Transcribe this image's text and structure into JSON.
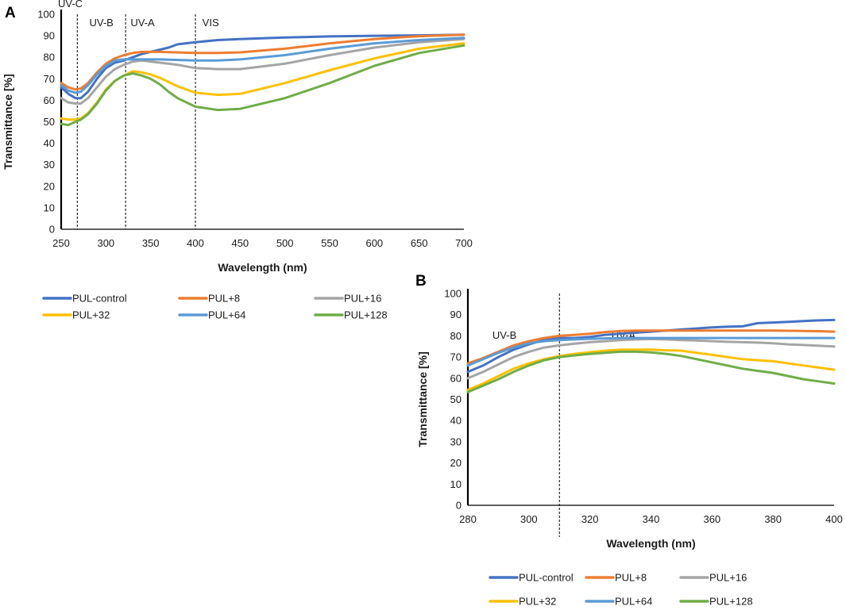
{
  "chart_data": [
    {
      "panel_label": "A",
      "type": "line",
      "xlabel": "Wavelength (nm)",
      "ylabel": "Transmittance [%]",
      "xlim": [
        250,
        700
      ],
      "ylim": [
        0,
        100
      ],
      "xticks": [
        250,
        300,
        350,
        400,
        450,
        500,
        550,
        600,
        650,
        700
      ],
      "yticks": [
        0,
        10,
        20,
        30,
        40,
        50,
        60,
        70,
        80,
        90,
        100
      ],
      "grid": false,
      "region_boundaries": [
        268,
        322,
        400
      ],
      "regions": [
        {
          "label": "UV-C",
          "x": 260
        },
        {
          "label": "UV-B",
          "x": 295
        },
        {
          "label": "UV-A",
          "x": 341
        },
        {
          "label": "VIS",
          "x": 417
        }
      ],
      "series": [
        {
          "name": "PUL-control",
          "color": "#4472C4",
          "x": [
            250,
            258,
            266,
            272,
            280,
            290,
            300,
            310,
            320,
            330,
            340,
            350,
            360,
            370,
            380,
            400,
            425,
            450,
            500,
            550,
            600,
            650,
            700
          ],
          "y": [
            66,
            63,
            61,
            61,
            64,
            70,
            75,
            77.5,
            78.5,
            80,
            81.5,
            82.5,
            83.5,
            84.5,
            86,
            87,
            88,
            88.5,
            89.2,
            89.7,
            90,
            90.2,
            90.5
          ]
        },
        {
          "name": "PUL+8",
          "color": "#ED7D31",
          "x": [
            250,
            258,
            266,
            272,
            280,
            290,
            300,
            310,
            320,
            330,
            340,
            350,
            360,
            400,
            425,
            450,
            500,
            550,
            600,
            650,
            700
          ],
          "y": [
            68,
            66,
            65,
            65.5,
            68,
            73,
            77,
            79.5,
            81,
            82,
            82.5,
            82.5,
            82.5,
            82,
            82,
            82.3,
            84,
            86.5,
            88.5,
            89.8,
            90.5
          ]
        },
        {
          "name": "PUL+16",
          "color": "#A5A5A5",
          "x": [
            250,
            258,
            266,
            272,
            280,
            290,
            300,
            310,
            320,
            330,
            340,
            350,
            360,
            370,
            380,
            400,
            425,
            450,
            500,
            550,
            600,
            650,
            700
          ],
          "y": [
            61,
            59,
            58.5,
            58.5,
            61,
            66,
            71,
            74.5,
            76.5,
            78,
            78.5,
            78,
            77.5,
            77,
            76.5,
            75,
            74.5,
            74.5,
            77,
            81,
            84.5,
            87,
            88.5
          ]
        },
        {
          "name": "PUL+32",
          "color": "#FFC000",
          "x": [
            250,
            258,
            266,
            272,
            280,
            290,
            300,
            310,
            320,
            330,
            340,
            350,
            360,
            370,
            380,
            400,
            425,
            450,
            500,
            550,
            600,
            650,
            700
          ],
          "y": [
            51.5,
            51,
            51,
            51.5,
            54,
            59,
            65,
            69,
            71.5,
            73.5,
            73,
            72,
            70.5,
            68.5,
            66.5,
            63.5,
            62.5,
            63,
            68,
            74,
            79.5,
            84,
            86.5
          ]
        },
        {
          "name": "PUL+64",
          "color": "#5B9BD5",
          "x": [
            250,
            258,
            266,
            272,
            280,
            290,
            300,
            310,
            320,
            330,
            340,
            350,
            360,
            400,
            425,
            450,
            500,
            550,
            600,
            650,
            700
          ],
          "y": [
            67,
            64.5,
            63.5,
            64,
            67,
            72,
            76,
            78.5,
            79,
            79,
            79,
            79,
            79,
            78.5,
            78.5,
            79,
            81,
            84,
            86.5,
            88,
            89
          ]
        },
        {
          "name": "PUL+128",
          "color": "#70AD47",
          "x": [
            250,
            258,
            266,
            272,
            280,
            290,
            300,
            310,
            320,
            330,
            340,
            350,
            360,
            370,
            380,
            400,
            425,
            450,
            500,
            550,
            600,
            650,
            700
          ],
          "y": [
            49,
            48.5,
            50,
            51,
            53.5,
            58.5,
            64.5,
            69,
            71.5,
            72.5,
            71.5,
            70,
            67.5,
            64,
            61,
            57,
            55.5,
            56,
            61,
            68,
            76,
            82,
            85.5
          ]
        }
      ]
    },
    {
      "panel_label": "B",
      "type": "line",
      "xlabel": "Wavelength (nm)",
      "ylabel": "Transmittance [%]",
      "xlim": [
        280,
        400
      ],
      "ylim": [
        0,
        100
      ],
      "xticks": [
        280,
        300,
        320,
        340,
        360,
        380,
        400
      ],
      "yticks": [
        0,
        10,
        20,
        30,
        40,
        50,
        60,
        70,
        80,
        90,
        100
      ],
      "grid": false,
      "region_boundaries": [
        310
      ],
      "regions": [
        {
          "label": "UV-B",
          "x": 292
        },
        {
          "label": "UV-A",
          "x": 331
        }
      ],
      "series": [
        {
          "name": "PUL-control",
          "color": "#4472C4",
          "x": [
            280,
            285,
            290,
            295,
            300,
            305,
            310,
            315,
            320,
            325,
            330,
            335,
            340,
            345,
            350,
            355,
            360,
            365,
            370,
            375,
            380,
            385,
            390,
            395,
            400
          ],
          "y": [
            63,
            66,
            70,
            73.5,
            76,
            78,
            79,
            79,
            79.5,
            80.5,
            81,
            81.5,
            82,
            82.5,
            83,
            83.5,
            84,
            84.3,
            84.5,
            86,
            86.3,
            86.6,
            87,
            87.3,
            87.5
          ]
        },
        {
          "name": "PUL+8",
          "color": "#ED7D31",
          "x": [
            280,
            285,
            290,
            295,
            300,
            305,
            310,
            315,
            320,
            325,
            330,
            335,
            340,
            345,
            350,
            355,
            360,
            365,
            370,
            375,
            380,
            385,
            390,
            395,
            400
          ],
          "y": [
            67,
            69.5,
            72.5,
            75.5,
            77.5,
            79,
            80,
            80.5,
            81,
            81.8,
            82.3,
            82.5,
            82.5,
            82.5,
            82.5,
            82.5,
            82.5,
            82.5,
            82.5,
            82.5,
            82.5,
            82.4,
            82.3,
            82.2,
            82
          ]
        },
        {
          "name": "PUL+16",
          "color": "#A5A5A5",
          "x": [
            280,
            285,
            290,
            295,
            300,
            305,
            310,
            315,
            320,
            325,
            330,
            335,
            340,
            345,
            350,
            355,
            360,
            365,
            370,
            375,
            380,
            385,
            390,
            395,
            400
          ],
          "y": [
            60,
            63,
            66.5,
            70,
            72.5,
            74.5,
            75.5,
            76.3,
            77,
            77.5,
            78,
            78.3,
            78.5,
            78.3,
            78,
            77.8,
            77.5,
            77.2,
            77,
            76.8,
            76.5,
            76,
            75.7,
            75.3,
            75
          ]
        },
        {
          "name": "PUL+32",
          "color": "#FFC000",
          "x": [
            280,
            285,
            290,
            295,
            300,
            305,
            310,
            315,
            320,
            325,
            330,
            335,
            340,
            345,
            350,
            355,
            360,
            365,
            370,
            375,
            380,
            385,
            390,
            395,
            400
          ],
          "y": [
            54.5,
            57.5,
            61,
            64.5,
            67,
            69,
            70.5,
            71.5,
            72.3,
            73,
            73.5,
            73.5,
            73.5,
            73.2,
            73,
            72,
            71,
            70,
            69,
            68.5,
            68,
            67,
            66,
            65,
            64
          ]
        },
        {
          "name": "PUL+64",
          "color": "#5B9BD5",
          "x": [
            280,
            285,
            290,
            295,
            300,
            305,
            310,
            315,
            320,
            325,
            330,
            335,
            340,
            345,
            350,
            355,
            360,
            365,
            370,
            375,
            380,
            385,
            390,
            395,
            400
          ],
          "y": [
            66,
            69,
            72,
            74.5,
            76.5,
            77.5,
            78,
            78.3,
            78.6,
            78.8,
            79,
            79,
            79,
            79,
            79,
            79,
            79,
            79,
            79,
            79,
            79,
            79,
            79,
            79,
            79
          ]
        },
        {
          "name": "PUL+128",
          "color": "#70AD47",
          "x": [
            280,
            285,
            290,
            295,
            300,
            305,
            310,
            315,
            320,
            325,
            330,
            335,
            340,
            345,
            350,
            355,
            360,
            365,
            370,
            375,
            380,
            385,
            390,
            395,
            400
          ],
          "y": [
            53.5,
            56.5,
            59.5,
            63,
            66,
            68.5,
            70,
            70.8,
            71.5,
            72,
            72.5,
            72.5,
            72.2,
            71.5,
            70.5,
            69,
            67.5,
            66,
            64.5,
            63.5,
            62.5,
            61,
            59.5,
            58.5,
            57.5
          ]
        }
      ]
    }
  ]
}
